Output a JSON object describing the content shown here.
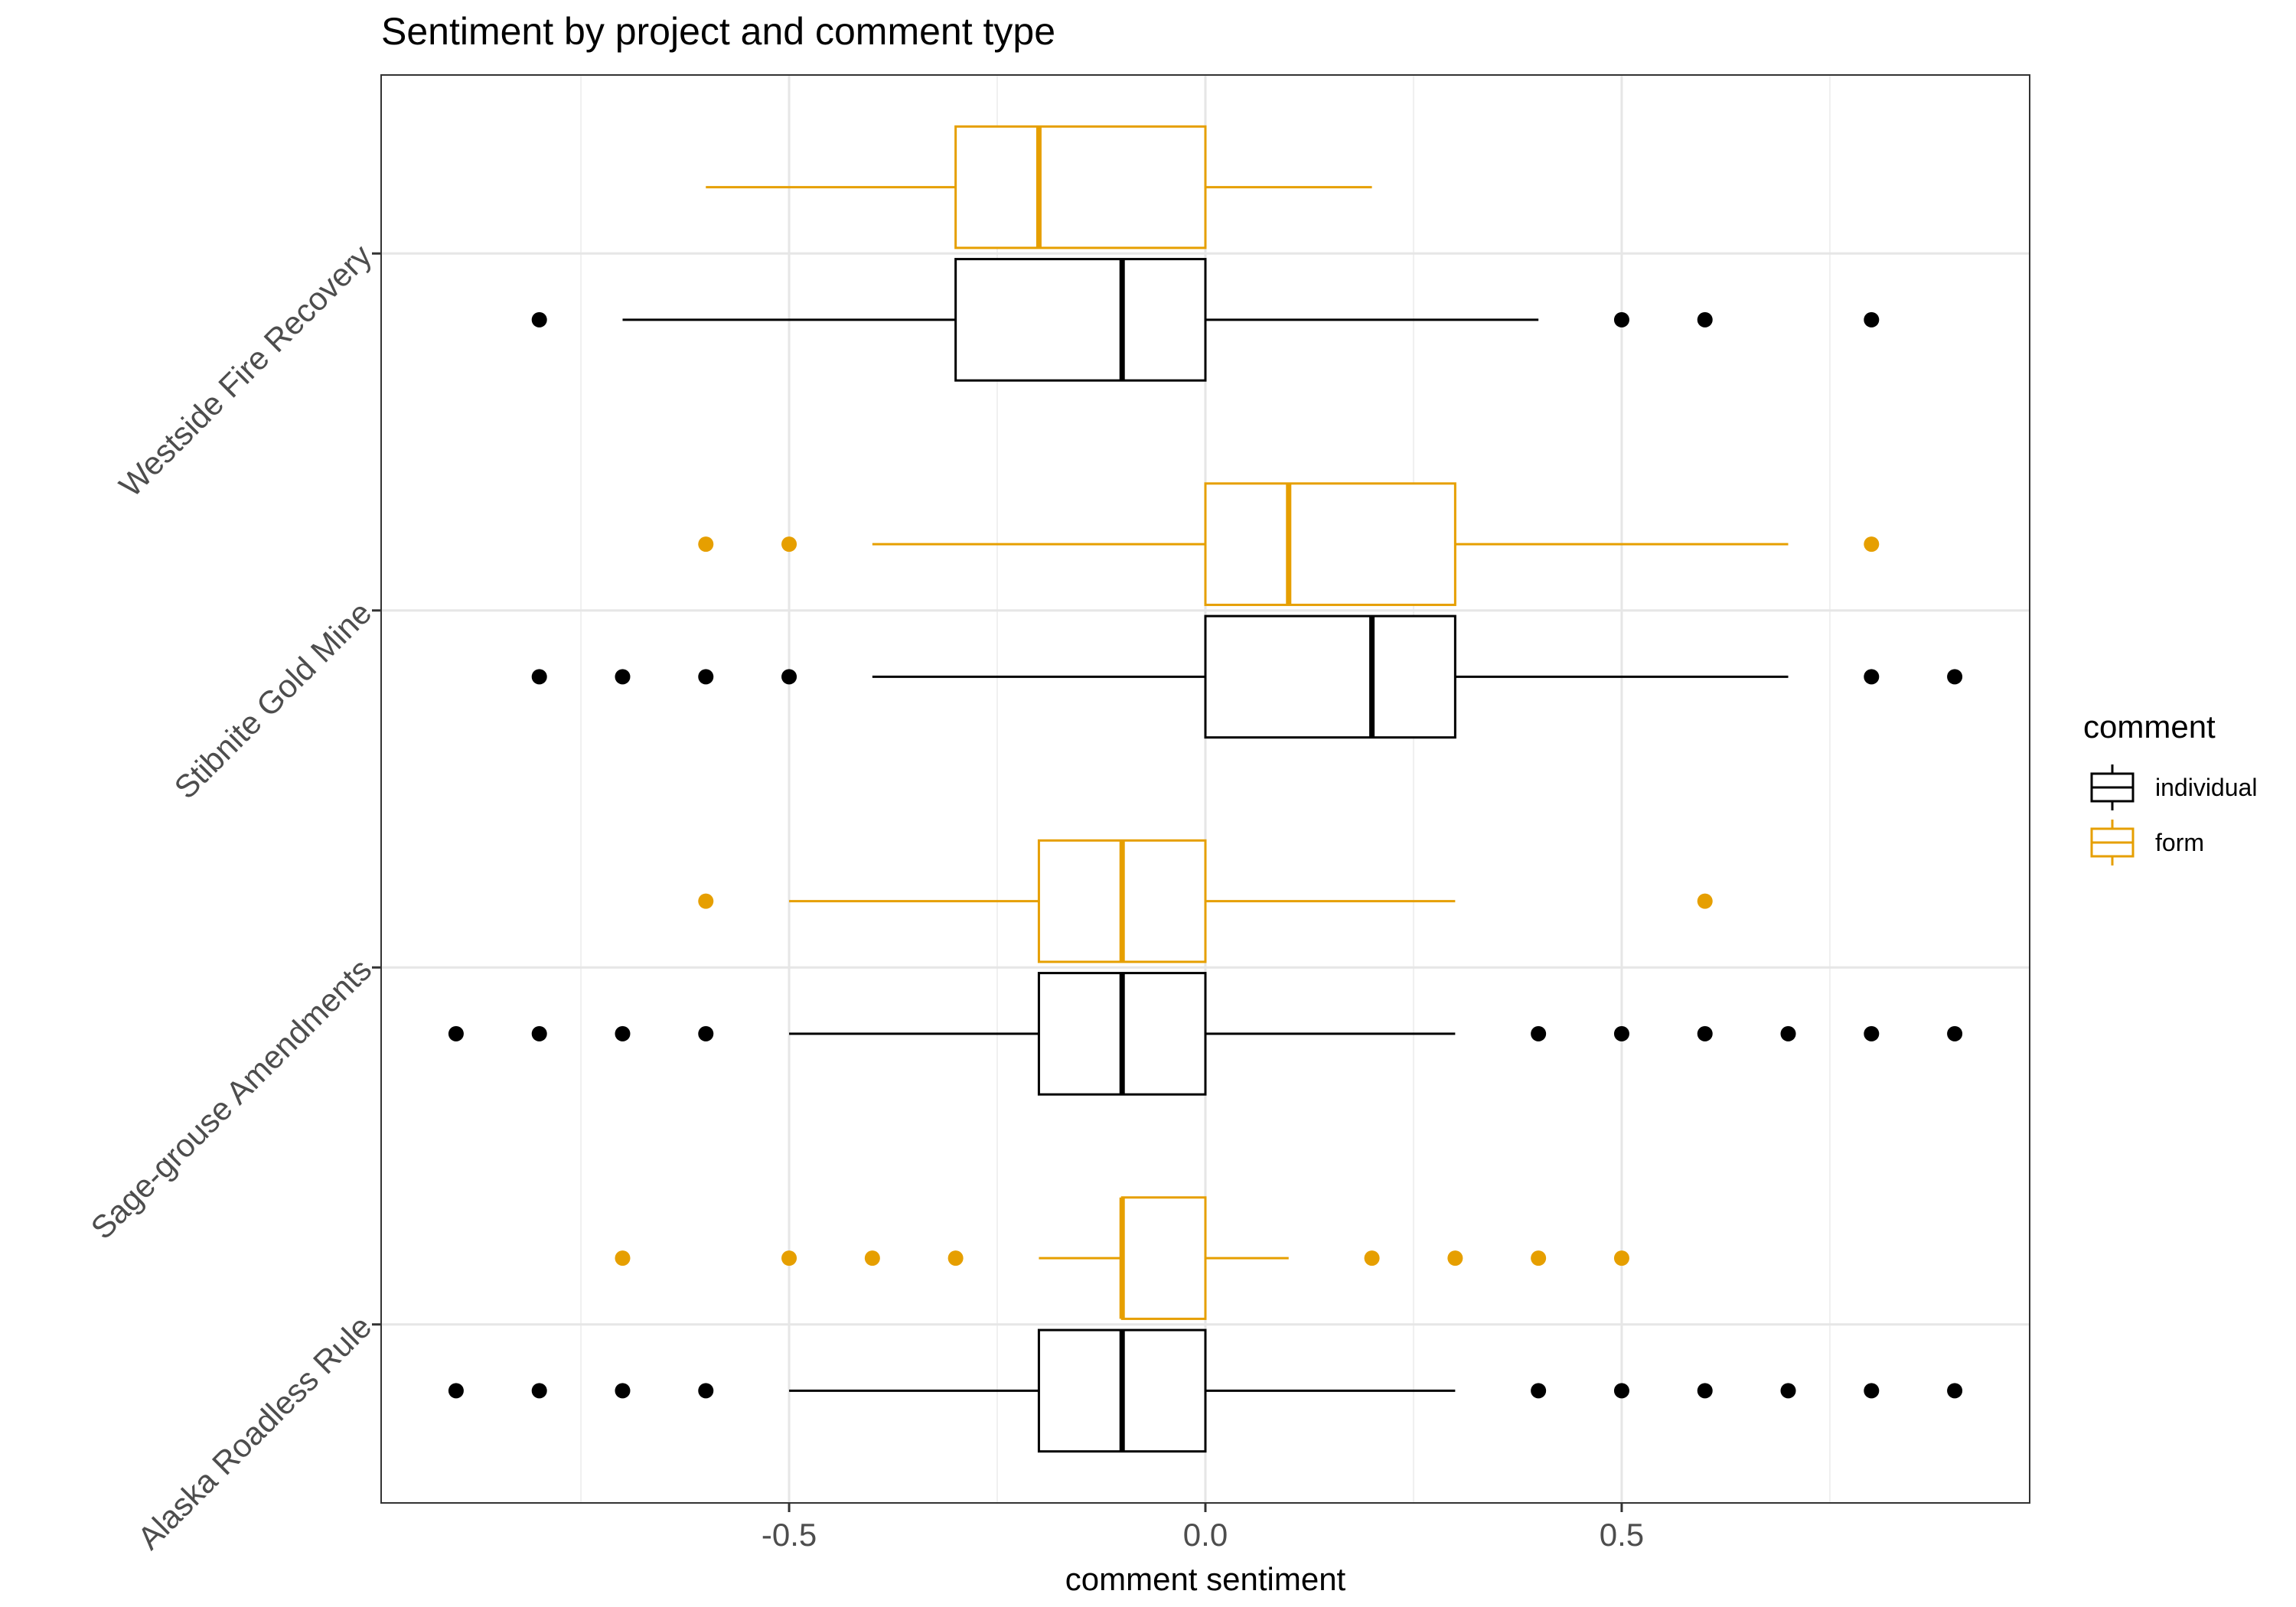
{
  "chart_data": {
    "type": "boxplot",
    "orientation": "horizontal",
    "title": "Sentiment by project and comment type",
    "xlabel": "comment sentiment",
    "ylabel": "",
    "xlim": [
      -0.99,
      0.99
    ],
    "x_ticks": [
      -0.5,
      0.0,
      0.5
    ],
    "x_tick_labels": [
      "-0.5",
      "0.0",
      "0.5"
    ],
    "x_minor_grid": [
      -0.75,
      -0.25,
      0.25,
      0.75
    ],
    "grid": true,
    "categories": [
      "Alaska Roadless Rule",
      "Sage-grouse Amendments",
      "Stibnite Gold Mine",
      "Westside Fire Recovery"
    ],
    "legend": {
      "title": "comment",
      "position": "right",
      "entries": [
        "individual",
        "form"
      ]
    },
    "series": [
      {
        "name": "individual",
        "color": "#000000",
        "boxes": [
          {
            "category": "Alaska Roadless Rule",
            "whisker_low": -0.5,
            "q1": -0.2,
            "median": -0.1,
            "q3": 0.0,
            "whisker_high": 0.3,
            "outliers": [
              -0.9,
              -0.8,
              -0.7,
              -0.6,
              0.4,
              0.5,
              0.6,
              0.7,
              0.8,
              0.9
            ]
          },
          {
            "category": "Sage-grouse Amendments",
            "whisker_low": -0.5,
            "q1": -0.2,
            "median": -0.1,
            "q3": 0.0,
            "whisker_high": 0.3,
            "outliers": [
              -0.9,
              -0.8,
              -0.7,
              -0.6,
              0.4,
              0.5,
              0.6,
              0.7,
              0.8,
              0.9
            ]
          },
          {
            "category": "Stibnite Gold Mine",
            "whisker_low": -0.4,
            "q1": 0.0,
            "median": 0.2,
            "q3": 0.3,
            "whisker_high": 0.7,
            "outliers": [
              -0.8,
              -0.7,
              -0.6,
              -0.5,
              0.8,
              0.9
            ]
          },
          {
            "category": "Westside Fire Recovery",
            "whisker_low": -0.7,
            "q1": -0.3,
            "median": -0.1,
            "q3": 0.0,
            "whisker_high": 0.4,
            "outliers": [
              -0.8,
              0.5,
              0.6,
              0.8
            ]
          }
        ]
      },
      {
        "name": "form",
        "color": "#E69F00",
        "boxes": [
          {
            "category": "Alaska Roadless Rule",
            "whisker_low": -0.2,
            "q1": -0.1,
            "median": -0.1,
            "q3": 0.0,
            "whisker_high": 0.1,
            "outliers": [
              -0.7,
              -0.5,
              -0.4,
              -0.3,
              0.2,
              0.3,
              0.4,
              0.5
            ]
          },
          {
            "category": "Sage-grouse Amendments",
            "whisker_low": -0.5,
            "q1": -0.2,
            "median": -0.1,
            "q3": 0.0,
            "whisker_high": 0.3,
            "outliers": [
              -0.6,
              0.6
            ]
          },
          {
            "category": "Stibnite Gold Mine",
            "whisker_low": -0.4,
            "q1": 0.0,
            "median": 0.1,
            "q3": 0.3,
            "whisker_high": 0.7,
            "outliers": [
              -0.6,
              -0.5,
              0.8
            ]
          },
          {
            "category": "Westside Fire Recovery",
            "whisker_low": -0.6,
            "q1": -0.3,
            "median": -0.2,
            "q3": 0.0,
            "whisker_high": 0.2,
            "outliers": []
          }
        ]
      }
    ]
  }
}
